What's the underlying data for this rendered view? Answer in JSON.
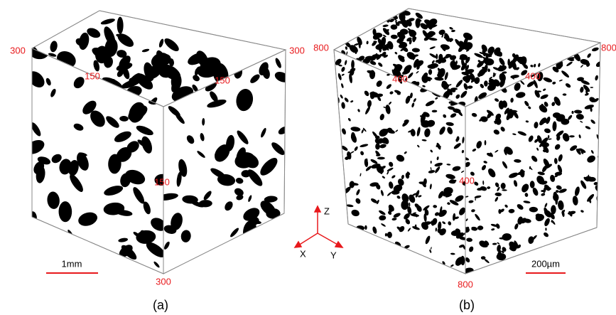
{
  "panels": [
    {
      "caption": "(a)",
      "scale_bar": "1mm",
      "labels": [
        "300",
        "300",
        "150",
        "150",
        "150",
        "300"
      ]
    },
    {
      "caption": "(b)",
      "scale_bar": "200µm",
      "labels": [
        "800",
        "800",
        "400",
        "400",
        "400",
        "800"
      ]
    }
  ],
  "axes": {
    "z": "Z",
    "x": "X",
    "y": "Y"
  }
}
